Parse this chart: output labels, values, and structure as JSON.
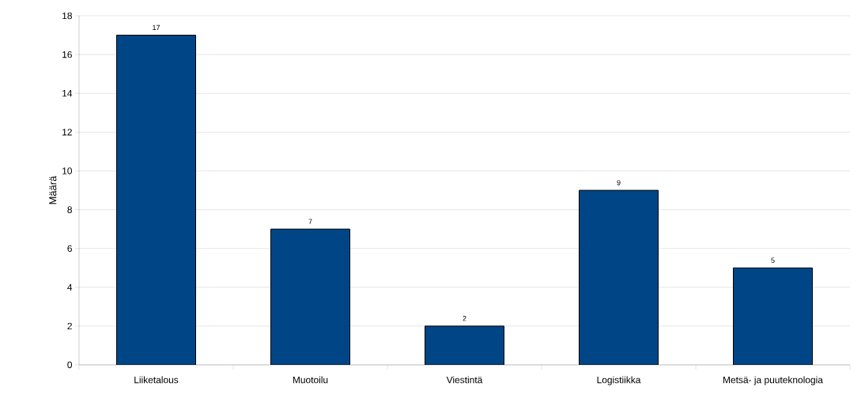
{
  "chart_data": {
    "type": "bar",
    "ylabel": "Määrä",
    "categories": [
      "Liiketalous",
      "Muotoilu",
      "Viestintä",
      "Logistiikka",
      "Metsä- ja puuteknologia"
    ],
    "values": [
      17,
      7,
      2,
      9,
      5
    ],
    "color": "#004586",
    "ylim": [
      0,
      18
    ],
    "yticks": [
      0,
      2,
      4,
      6,
      8,
      10,
      12,
      14,
      16,
      18
    ],
    "grid": "y",
    "data_labels": true
  }
}
